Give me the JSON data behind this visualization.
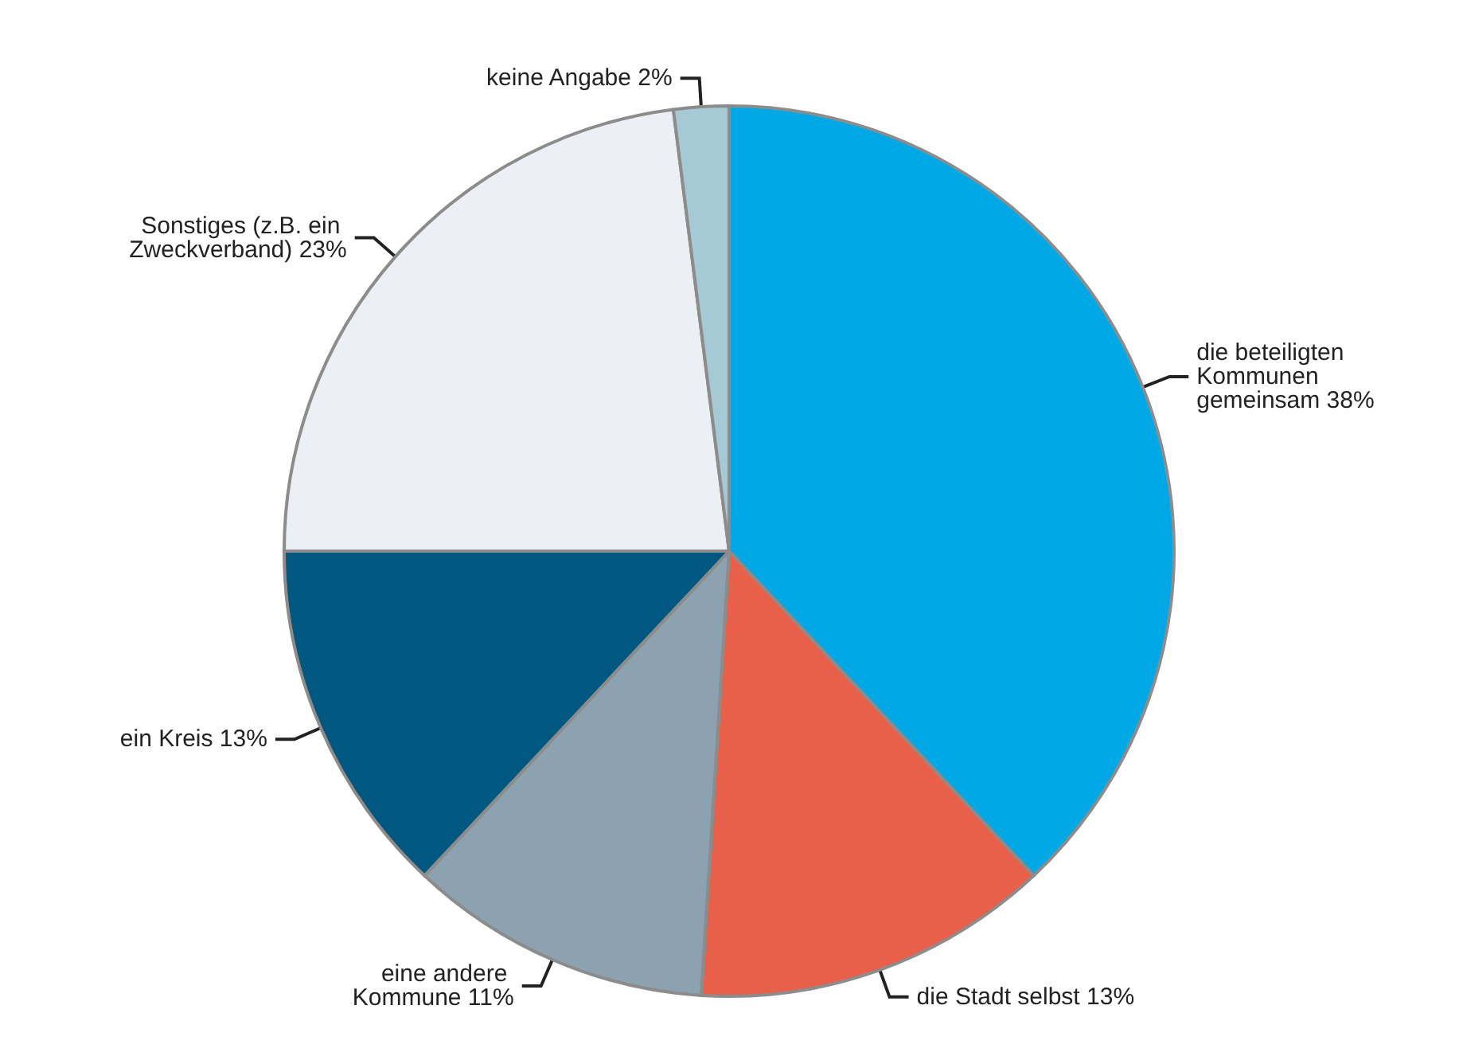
{
  "chart_data": {
    "type": "pie",
    "categories": [
      "die beteiligten Kommunen gemeinsam",
      "die Stadt selbst",
      "eine andere Kommune",
      "ein Kreis",
      "Sonstiges (z.B. ein Zweckverband)",
      "keine Angabe"
    ],
    "values": [
      38,
      13,
      11,
      13,
      23,
      2
    ],
    "value_labels": [
      "38%",
      "13%",
      "11%",
      "13%",
      "23%",
      "2%"
    ],
    "colors": [
      "#00a9e6",
      "#e8604a",
      "#8ca2b0",
      "#00577f",
      "#eceff3",
      "#a6c9d6"
    ],
    "legend": false
  }
}
